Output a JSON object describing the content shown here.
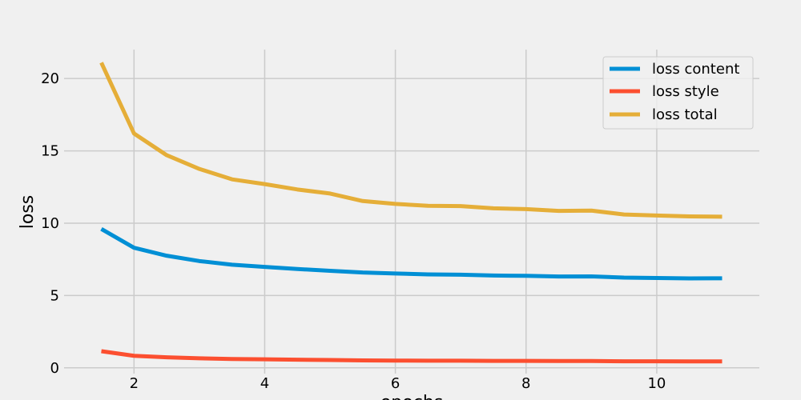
{
  "chart_data": {
    "type": "line",
    "title": "",
    "xlabel": "epochs",
    "ylabel": "loss",
    "xlim": [
      0.93,
      11.57
    ],
    "ylim": [
      -0.4,
      22.0
    ],
    "x_ticks": [
      2,
      4,
      6,
      8,
      10
    ],
    "y_ticks": [
      0,
      5,
      10,
      15,
      20
    ],
    "grid": true,
    "legend_position": "top-right",
    "x": [
      1.5,
      2.0,
      2.5,
      3.0,
      3.5,
      4.0,
      4.5,
      5.0,
      5.5,
      6.0,
      6.5,
      7.0,
      7.5,
      8.0,
      8.5,
      9.0,
      9.5,
      10.0,
      10.5,
      11.0
    ],
    "series": [
      {
        "name": "loss content",
        "color": "#008fd5",
        "values": [
          9.6,
          8.3,
          7.75,
          7.38,
          7.13,
          6.98,
          6.83,
          6.71,
          6.59,
          6.52,
          6.46,
          6.44,
          6.38,
          6.36,
          6.31,
          6.32,
          6.24,
          6.21,
          6.18,
          6.19
        ]
      },
      {
        "name": "loss style",
        "color": "#fc4f30",
        "values": [
          1.15,
          0.83,
          0.73,
          0.66,
          0.61,
          0.59,
          0.56,
          0.54,
          0.51,
          0.5,
          0.49,
          0.49,
          0.48,
          0.48,
          0.47,
          0.47,
          0.45,
          0.45,
          0.44,
          0.44
        ]
      },
      {
        "name": "loss total",
        "color": "#e5ae38",
        "values": [
          21.1,
          16.2,
          14.7,
          13.75,
          13.03,
          12.7,
          12.33,
          12.05,
          11.53,
          11.33,
          11.2,
          11.18,
          11.03,
          10.97,
          10.85,
          10.87,
          10.6,
          10.53,
          10.47,
          10.45
        ]
      }
    ]
  }
}
